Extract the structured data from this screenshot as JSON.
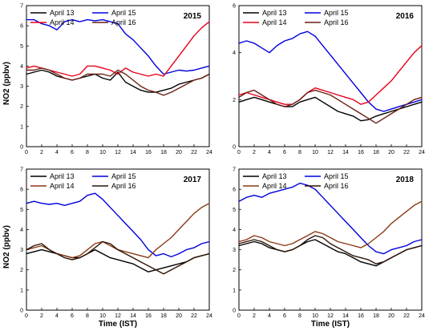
{
  "figure": {
    "ylabel": "NO2 (ppbv)",
    "xlabel": "Time (IST)"
  },
  "chart_data": [
    {
      "type": "line",
      "title": "2015",
      "xlabel": "Time (IST)",
      "ylabel": "NO2 (ppbv)",
      "xlim": [
        0,
        24
      ],
      "ylim": [
        0,
        7
      ],
      "xticks": [
        0,
        2,
        4,
        6,
        8,
        10,
        12,
        14,
        16,
        18,
        20,
        22,
        24
      ],
      "yticks": [
        0,
        1,
        2,
        3,
        4,
        5,
        6,
        7
      ],
      "grid": false,
      "legend": "top-left",
      "series": [
        {
          "name": "April 13",
          "color": "#000000",
          "x": [
            0,
            1,
            2,
            3,
            4,
            5,
            6,
            7,
            8,
            9,
            10,
            11,
            12,
            13,
            14,
            15,
            16,
            17,
            18,
            19,
            20,
            21,
            22,
            23,
            24
          ],
          "y": [
            3.6,
            3.7,
            3.8,
            3.7,
            3.5,
            3.4,
            3.3,
            3.4,
            3.5,
            3.6,
            3.4,
            3.3,
            3.7,
            3.2,
            3.0,
            2.8,
            2.7,
            2.7,
            2.8,
            2.9,
            3.1,
            3.2,
            3.3,
            3.4,
            3.6
          ]
        },
        {
          "name": "April 15",
          "color": "#0000dd",
          "x": [
            0,
            1,
            2,
            3,
            4,
            5,
            6,
            7,
            8,
            9,
            10,
            11,
            12,
            13,
            14,
            15,
            16,
            17,
            18,
            19,
            20,
            21,
            22,
            23,
            24
          ],
          "y": [
            6.3,
            6.3,
            6.1,
            6.0,
            5.8,
            6.2,
            6.3,
            6.2,
            6.3,
            6.25,
            6.3,
            6.2,
            6.1,
            5.6,
            5.3,
            4.9,
            4.5,
            4.0,
            3.6,
            3.7,
            3.8,
            3.75,
            3.8,
            3.9,
            4.0
          ]
        },
        {
          "name": "April 14",
          "color": "#e8001c",
          "x": [
            0,
            1,
            2,
            3,
            4,
            5,
            6,
            7,
            8,
            9,
            10,
            11,
            12,
            13,
            14,
            15,
            16,
            17,
            18,
            19,
            20,
            21,
            22,
            23,
            24
          ],
          "y": [
            3.9,
            4.0,
            3.9,
            3.8,
            3.7,
            3.6,
            3.5,
            3.6,
            4.0,
            4.0,
            3.9,
            3.8,
            3.6,
            3.9,
            3.7,
            3.6,
            3.5,
            3.6,
            3.5,
            4.0,
            4.5,
            5.0,
            5.5,
            5.9,
            6.2
          ]
        },
        {
          "name": "April 16",
          "color": "#6b1f14",
          "x": [
            0,
            1,
            2,
            3,
            4,
            5,
            6,
            7,
            8,
            9,
            10,
            11,
            12,
            13,
            14,
            15,
            16,
            17,
            18,
            19,
            20,
            21,
            22,
            23,
            24
          ],
          "y": [
            3.8,
            3.8,
            3.9,
            3.8,
            3.6,
            3.4,
            3.3,
            3.4,
            3.6,
            3.6,
            3.6,
            3.5,
            3.8,
            3.6,
            3.3,
            3.0,
            2.8,
            2.7,
            2.55,
            2.7,
            2.9,
            3.1,
            3.3,
            3.4,
            3.6
          ]
        }
      ]
    },
    {
      "type": "line",
      "title": "2016",
      "xlabel": "Time (IST)",
      "ylabel": "NO2 (ppbv)",
      "xlim": [
        0,
        24
      ],
      "ylim": [
        0,
        6
      ],
      "xticks": [
        0,
        2,
        4,
        6,
        8,
        10,
        12,
        14,
        16,
        18,
        20,
        22,
        24
      ],
      "yticks": [
        0,
        2,
        4,
        6
      ],
      "grid": false,
      "legend": "top-left",
      "series": [
        {
          "name": "April 13",
          "color": "#000000",
          "x": [
            0,
            1,
            2,
            3,
            4,
            5,
            6,
            7,
            8,
            9,
            10,
            11,
            12,
            13,
            14,
            15,
            16,
            17,
            18,
            19,
            20,
            21,
            22,
            23,
            24
          ],
          "y": [
            1.9,
            2.0,
            2.1,
            2.0,
            1.9,
            1.8,
            1.7,
            1.7,
            1.9,
            2.0,
            2.1,
            1.9,
            1.7,
            1.5,
            1.4,
            1.3,
            1.1,
            1.15,
            1.3,
            1.4,
            1.5,
            1.6,
            1.7,
            1.8,
            1.9
          ]
        },
        {
          "name": "April 15",
          "color": "#0000dd",
          "x": [
            0,
            1,
            2,
            3,
            4,
            5,
            6,
            7,
            8,
            9,
            10,
            11,
            12,
            13,
            14,
            15,
            16,
            17,
            18,
            19,
            20,
            21,
            22,
            23,
            24
          ],
          "y": [
            4.4,
            4.5,
            4.4,
            4.2,
            4.0,
            4.3,
            4.5,
            4.6,
            4.8,
            4.9,
            4.7,
            4.3,
            3.9,
            3.5,
            3.1,
            2.7,
            2.3,
            1.9,
            1.6,
            1.5,
            1.6,
            1.7,
            1.8,
            1.9,
            2.0
          ]
        },
        {
          "name": "April 14",
          "color": "#e8001c",
          "x": [
            0,
            1,
            2,
            3,
            4,
            5,
            6,
            7,
            8,
            9,
            10,
            11,
            12,
            13,
            14,
            15,
            16,
            17,
            18,
            19,
            20,
            21,
            22,
            23,
            24
          ],
          "y": [
            2.2,
            2.3,
            2.2,
            2.1,
            2.0,
            1.9,
            1.8,
            1.8,
            2.0,
            2.3,
            2.5,
            2.4,
            2.3,
            2.2,
            2.1,
            2.0,
            1.8,
            1.9,
            2.2,
            2.5,
            2.8,
            3.2,
            3.6,
            4.0,
            4.3
          ]
        },
        {
          "name": "April 16",
          "color": "#6b1f14",
          "x": [
            0,
            1,
            2,
            3,
            4,
            5,
            6,
            7,
            8,
            9,
            10,
            11,
            12,
            13,
            14,
            15,
            16,
            17,
            18,
            19,
            20,
            21,
            22,
            23,
            24
          ],
          "y": [
            2.1,
            2.3,
            2.4,
            2.2,
            2.0,
            1.8,
            1.7,
            1.8,
            2.0,
            2.3,
            2.4,
            2.3,
            2.2,
            2.0,
            1.8,
            1.6,
            1.4,
            1.2,
            1.0,
            1.2,
            1.4,
            1.6,
            1.8,
            2.0,
            2.1
          ]
        }
      ]
    },
    {
      "type": "line",
      "title": "2017",
      "xlabel": "Time (IST)",
      "ylabel": "NO2 (ppbv)",
      "xlim": [
        0,
        24
      ],
      "ylim": [
        0,
        7
      ],
      "xticks": [
        0,
        2,
        4,
        6,
        8,
        10,
        12,
        14,
        16,
        18,
        20,
        22,
        24
      ],
      "yticks": [
        0,
        1,
        2,
        3,
        4,
        5,
        6,
        7
      ],
      "grid": false,
      "legend": "top-left",
      "series": [
        {
          "name": "April 13",
          "color": "#000000",
          "x": [
            0,
            1,
            2,
            3,
            4,
            5,
            6,
            7,
            8,
            9,
            10,
            11,
            12,
            13,
            14,
            15,
            16,
            17,
            18,
            19,
            20,
            21,
            22,
            23,
            24
          ],
          "y": [
            2.8,
            2.9,
            3.0,
            2.9,
            2.8,
            2.7,
            2.6,
            2.6,
            2.8,
            3.0,
            2.8,
            2.6,
            2.5,
            2.4,
            2.3,
            2.1,
            1.9,
            2.0,
            2.1,
            2.2,
            2.3,
            2.4,
            2.6,
            2.7,
            2.8
          ]
        },
        {
          "name": "April 15",
          "color": "#0000dd",
          "x": [
            0,
            1,
            2,
            3,
            4,
            5,
            6,
            7,
            8,
            9,
            10,
            11,
            12,
            13,
            14,
            15,
            16,
            17,
            18,
            19,
            20,
            21,
            22,
            23,
            24
          ],
          "y": [
            5.3,
            5.4,
            5.3,
            5.25,
            5.3,
            5.2,
            5.3,
            5.4,
            5.7,
            5.8,
            5.5,
            5.1,
            4.7,
            4.3,
            3.9,
            3.5,
            3.0,
            2.7,
            2.8,
            2.65,
            2.8,
            3.0,
            3.1,
            3.3,
            3.4
          ]
        },
        {
          "name": "April 14",
          "color": "#8b3a14",
          "x": [
            0,
            1,
            2,
            3,
            4,
            5,
            6,
            7,
            8,
            9,
            10,
            11,
            12,
            13,
            14,
            15,
            16,
            17,
            18,
            19,
            20,
            21,
            22,
            23,
            24
          ],
          "y": [
            3.0,
            3.1,
            3.2,
            3.0,
            2.8,
            2.7,
            2.6,
            2.7,
            3.0,
            3.3,
            3.4,
            3.2,
            3.0,
            2.9,
            2.8,
            2.7,
            2.6,
            3.0,
            3.3,
            3.6,
            4.0,
            4.4,
            4.8,
            5.1,
            5.3
          ]
        },
        {
          "name": "April 16",
          "color": "#2e1407",
          "x": [
            0,
            1,
            2,
            3,
            4,
            5,
            6,
            7,
            8,
            9,
            10,
            11,
            12,
            13,
            14,
            15,
            16,
            17,
            18,
            19,
            20,
            21,
            22,
            23,
            24
          ],
          "y": [
            3.0,
            3.2,
            3.3,
            3.0,
            2.8,
            2.6,
            2.5,
            2.6,
            2.8,
            3.1,
            3.4,
            3.3,
            3.0,
            2.8,
            2.6,
            2.4,
            2.2,
            2.0,
            1.8,
            2.0,
            2.2,
            2.4,
            2.6,
            2.7,
            2.8
          ]
        }
      ]
    },
    {
      "type": "line",
      "title": "2018",
      "xlabel": "Time (IST)",
      "ylabel": "NO2 (ppbv)",
      "xlim": [
        0,
        24
      ],
      "ylim": [
        0,
        7
      ],
      "xticks": [
        0,
        2,
        4,
        6,
        8,
        10,
        12,
        14,
        16,
        18,
        20,
        22,
        24
      ],
      "yticks": [
        0,
        1,
        2,
        3,
        4,
        5,
        6,
        7
      ],
      "grid": false,
      "legend": "top-left",
      "series": [
        {
          "name": "April 13",
          "color": "#000000",
          "x": [
            0,
            1,
            2,
            3,
            4,
            5,
            6,
            7,
            8,
            9,
            10,
            11,
            12,
            13,
            14,
            15,
            16,
            17,
            18,
            19,
            20,
            21,
            22,
            23,
            24
          ],
          "y": [
            3.2,
            3.3,
            3.4,
            3.3,
            3.1,
            3.0,
            2.9,
            3.0,
            3.2,
            3.4,
            3.5,
            3.3,
            3.1,
            2.9,
            2.8,
            2.6,
            2.4,
            2.3,
            2.2,
            2.4,
            2.6,
            2.8,
            3.0,
            3.1,
            3.2
          ]
        },
        {
          "name": "April 15",
          "color": "#0000dd",
          "x": [
            0,
            1,
            2,
            3,
            4,
            5,
            6,
            7,
            8,
            9,
            10,
            11,
            12,
            13,
            14,
            15,
            16,
            17,
            18,
            19,
            20,
            21,
            22,
            23,
            24
          ],
          "y": [
            5.4,
            5.6,
            5.7,
            5.6,
            5.8,
            5.9,
            6.0,
            6.1,
            6.3,
            6.2,
            6.0,
            5.6,
            5.2,
            4.8,
            4.4,
            4.0,
            3.6,
            3.2,
            2.9,
            2.8,
            3.0,
            3.1,
            3.2,
            3.4,
            3.5
          ]
        },
        {
          "name": "April 14",
          "color": "#8b3a14",
          "x": [
            0,
            1,
            2,
            3,
            4,
            5,
            6,
            7,
            8,
            9,
            10,
            11,
            12,
            13,
            14,
            15,
            16,
            17,
            18,
            19,
            20,
            21,
            22,
            23,
            24
          ],
          "y": [
            3.4,
            3.5,
            3.7,
            3.6,
            3.4,
            3.3,
            3.2,
            3.3,
            3.5,
            3.7,
            3.9,
            3.8,
            3.6,
            3.4,
            3.3,
            3.2,
            3.1,
            3.3,
            3.6,
            3.9,
            4.3,
            4.6,
            4.9,
            5.2,
            5.4
          ]
        },
        {
          "name": "April 16",
          "color": "#2e1407",
          "x": [
            0,
            1,
            2,
            3,
            4,
            5,
            6,
            7,
            8,
            9,
            10,
            11,
            12,
            13,
            14,
            15,
            16,
            17,
            18,
            19,
            20,
            21,
            22,
            23,
            24
          ],
          "y": [
            3.3,
            3.4,
            3.5,
            3.4,
            3.2,
            3.0,
            2.9,
            3.0,
            3.2,
            3.5,
            3.7,
            3.6,
            3.3,
            3.1,
            2.9,
            2.7,
            2.6,
            2.5,
            2.3,
            2.4,
            2.6,
            2.8,
            3.0,
            3.1,
            3.2
          ]
        }
      ]
    }
  ]
}
